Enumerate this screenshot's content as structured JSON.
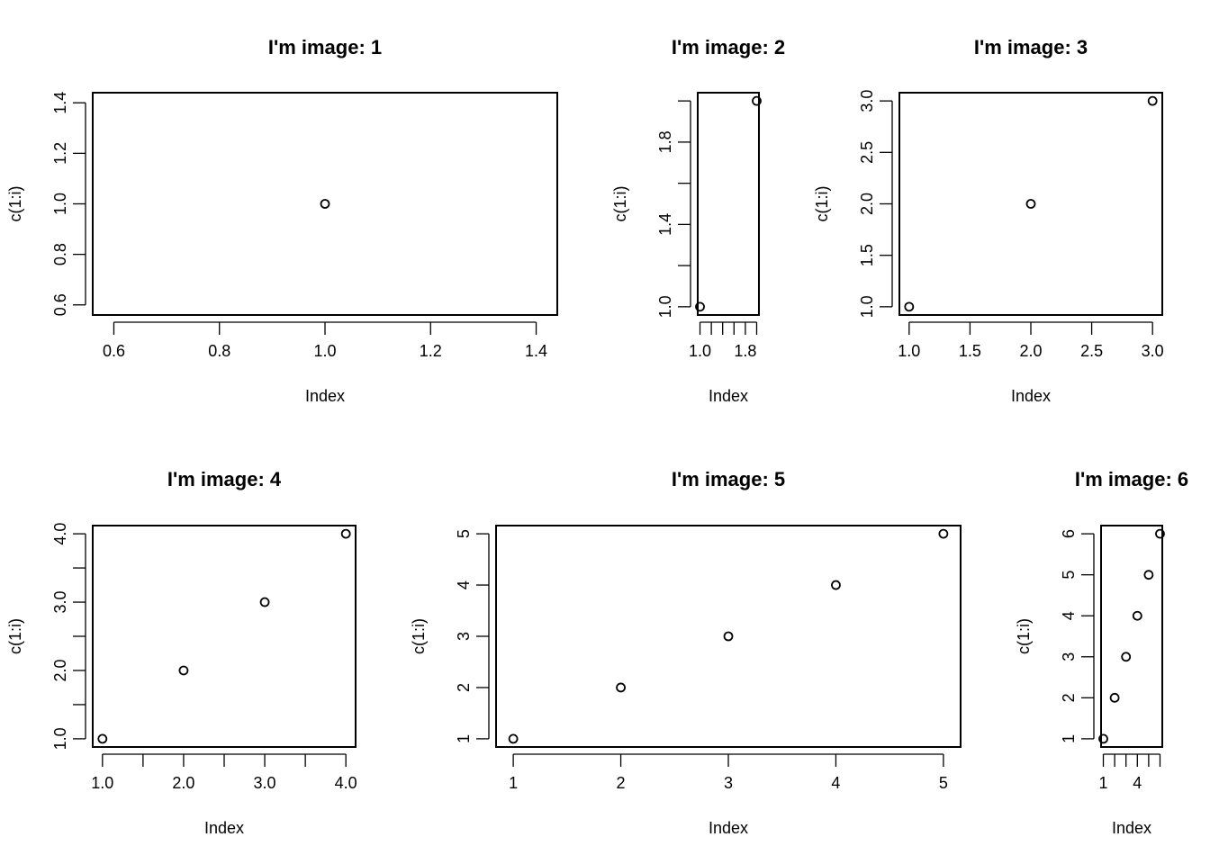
{
  "chart_data": [
    {
      "type": "scatter",
      "title": "I'm image: 1",
      "xlabel": "Index",
      "ylabel": "c(1:i)",
      "x": [
        1
      ],
      "y": [
        1
      ],
      "xlim": [
        0.56,
        1.44
      ],
      "ylim": [
        0.56,
        1.44
      ],
      "xticks": [
        0.6,
        0.8,
        1.0,
        1.2,
        1.4
      ],
      "xtick_labels": [
        "0.6",
        "0.8",
        "1.0",
        "1.2",
        "1.4"
      ],
      "yticks": [
        0.6,
        0.8,
        1.0,
        1.2,
        1.4
      ],
      "ytick_labels": [
        "0.6",
        "0.8",
        "1.0",
        "1.2",
        "1.4"
      ],
      "grid": false
    },
    {
      "type": "scatter",
      "title": "I'm image: 2",
      "xlabel": "Index",
      "ylabel": "c(1:i)",
      "x": [
        1,
        2
      ],
      "y": [
        1,
        2
      ],
      "xlim": [
        0.96,
        2.04
      ],
      "ylim": [
        0.96,
        2.04
      ],
      "xticks": [
        1.0,
        1.2,
        1.4,
        1.6,
        1.8,
        2.0
      ],
      "xtick_labels": [
        "1.0",
        "",
        "",
        "",
        "1.8",
        ""
      ],
      "yticks": [
        1.0,
        1.2,
        1.4,
        1.6,
        1.8,
        2.0
      ],
      "ytick_labels": [
        "1.0",
        "",
        "1.4",
        "",
        "1.8",
        ""
      ],
      "grid": false
    },
    {
      "type": "scatter",
      "title": "I'm image: 3",
      "xlabel": "Index",
      "ylabel": "c(1:i)",
      "x": [
        1,
        2,
        3
      ],
      "y": [
        1,
        2,
        3
      ],
      "xlim": [
        0.92,
        3.08
      ],
      "ylim": [
        0.92,
        3.08
      ],
      "xticks": [
        1.0,
        1.5,
        2.0,
        2.5,
        3.0
      ],
      "xtick_labels": [
        "1.0",
        "1.5",
        "2.0",
        "2.5",
        "3.0"
      ],
      "yticks": [
        1.0,
        1.5,
        2.0,
        2.5,
        3.0
      ],
      "ytick_labels": [
        "1.0",
        "1.5",
        "2.0",
        "2.5",
        "3.0"
      ],
      "grid": false
    },
    {
      "type": "scatter",
      "title": "I'm image: 4",
      "xlabel": "Index",
      "ylabel": "c(1:i)",
      "x": [
        1,
        2,
        3,
        4
      ],
      "y": [
        1,
        2,
        3,
        4
      ],
      "xlim": [
        0.88,
        4.12
      ],
      "ylim": [
        0.88,
        4.12
      ],
      "xticks": [
        1.0,
        1.5,
        2.0,
        2.5,
        3.0,
        3.5,
        4.0
      ],
      "xtick_labels": [
        "1.0",
        "",
        "2.0",
        "",
        "3.0",
        "",
        "4.0"
      ],
      "yticks": [
        1.0,
        1.5,
        2.0,
        2.5,
        3.0,
        3.5,
        4.0
      ],
      "ytick_labels": [
        "1.0",
        "",
        "2.0",
        "",
        "3.0",
        "",
        "4.0"
      ],
      "grid": false
    },
    {
      "type": "scatter",
      "title": "I'm image: 5",
      "xlabel": "Index",
      "ylabel": "c(1:i)",
      "x": [
        1,
        2,
        3,
        4,
        5
      ],
      "y": [
        1,
        2,
        3,
        4,
        5
      ],
      "xlim": [
        0.84,
        5.16
      ],
      "ylim": [
        0.84,
        5.16
      ],
      "xticks": [
        1,
        2,
        3,
        4,
        5
      ],
      "xtick_labels": [
        "1",
        "2",
        "3",
        "4",
        "5"
      ],
      "yticks": [
        1,
        2,
        3,
        4,
        5
      ],
      "ytick_labels": [
        "1",
        "2",
        "3",
        "4",
        "5"
      ],
      "grid": false
    },
    {
      "type": "scatter",
      "title": "I'm image: 6",
      "xlabel": "Index",
      "ylabel": "c(1:i)",
      "x": [
        1,
        2,
        3,
        4,
        5,
        6
      ],
      "y": [
        1,
        2,
        3,
        4,
        5,
        6
      ],
      "xlim": [
        0.8,
        6.2
      ],
      "ylim": [
        0.8,
        6.2
      ],
      "xticks": [
        1,
        2,
        3,
        4,
        5,
        6
      ],
      "xtick_labels": [
        "1",
        "",
        "",
        "4",
        "",
        ""
      ],
      "yticks": [
        1,
        2,
        3,
        4,
        5,
        6
      ],
      "ytick_labels": [
        "1",
        "2",
        "3",
        "4",
        "5",
        "6"
      ],
      "grid": false
    }
  ]
}
